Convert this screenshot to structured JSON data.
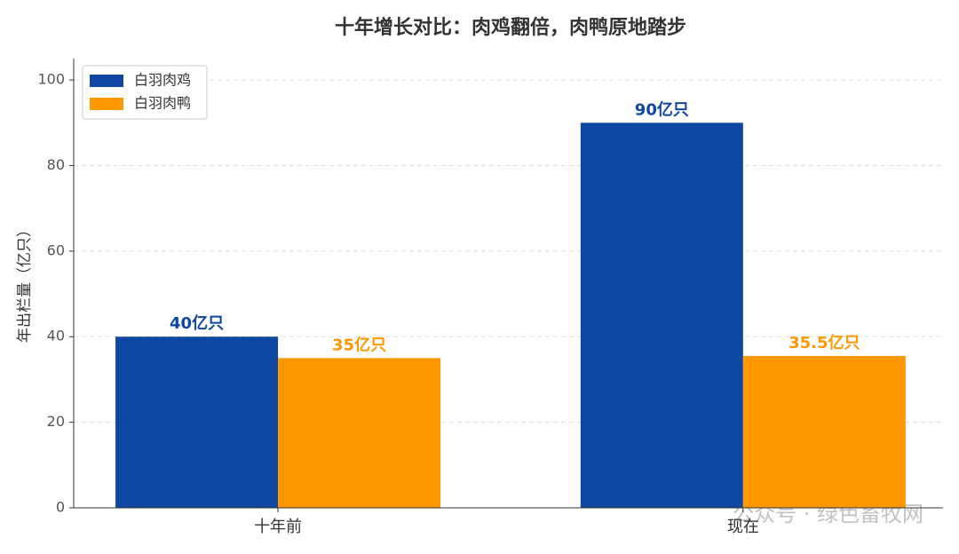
{
  "chart_data": {
    "type": "bar",
    "title": "十年增长对比：肉鸡翻倍，肉鸭原地踏步",
    "y_label": "年出栏量（亿只）",
    "categories": [
      "十年前",
      "现在"
    ],
    "series": [
      {
        "name": "白羽肉鸡",
        "color": "#0d47a1",
        "values": [
          40,
          90
        ],
        "value_labels": [
          "40亿只",
          "90亿只"
        ]
      },
      {
        "name": "白羽肉鸭",
        "color": "#ff9800",
        "values": [
          35,
          35.5
        ],
        "value_labels": [
          "35亿只",
          "35.5亿只"
        ]
      }
    ],
    "ylim": [
      0,
      105
    ],
    "yticks": [
      0,
      20,
      40,
      60,
      80,
      100
    ],
    "grid": true,
    "legend": "upper left",
    "watermark": "公众号 · 绿色畜牧网"
  }
}
